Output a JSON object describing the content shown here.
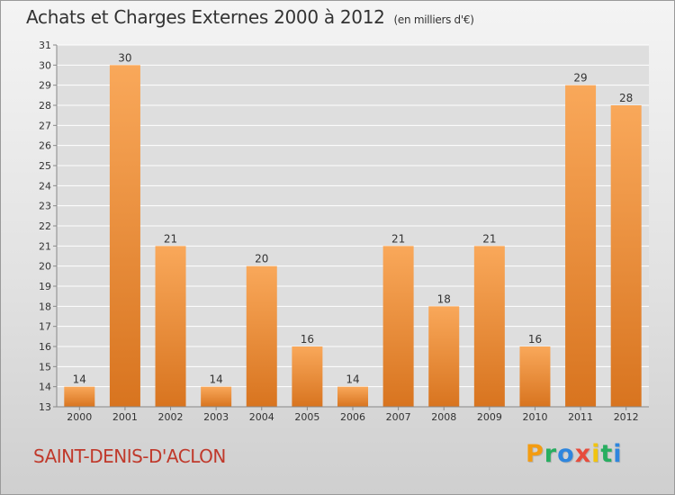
{
  "header": {
    "title": "Achats et Charges Externes 2000 à 2012",
    "subtitle": "(en milliers d'€)"
  },
  "footer": {
    "commune": "SAINT-DENIS-D'ACLON",
    "brand": "Proxiti",
    "brand_letters": [
      {
        "char": "P",
        "color": "#f39c12"
      },
      {
        "char": "r",
        "color": "#27ae60"
      },
      {
        "char": "o",
        "color": "#2e86de"
      },
      {
        "char": "x",
        "color": "#e74c3c"
      },
      {
        "char": "i",
        "color": "#f1c40f"
      },
      {
        "char": "t",
        "color": "#27ae60"
      },
      {
        "char": "i",
        "color": "#2e86de"
      }
    ]
  },
  "colors": {
    "bar_light": "#f9a85a",
    "bar_dark": "#d8741f",
    "grid": "#ffffff",
    "axis": "#888888"
  },
  "chart_data": {
    "type": "bar",
    "categories": [
      "2000",
      "2001",
      "2002",
      "2003",
      "2004",
      "2005",
      "2006",
      "2007",
      "2008",
      "2009",
      "2010",
      "2011",
      "2012"
    ],
    "values": [
      14,
      30,
      21,
      14,
      20,
      16,
      14,
      21,
      18,
      21,
      16,
      29,
      28
    ],
    "ylim": [
      13,
      31
    ],
    "yticks": [
      13,
      14,
      15,
      16,
      17,
      18,
      19,
      20,
      21,
      22,
      23,
      24,
      25,
      26,
      27,
      28,
      29,
      30,
      31
    ],
    "grid": true,
    "xlabel": "",
    "ylabel": ""
  }
}
